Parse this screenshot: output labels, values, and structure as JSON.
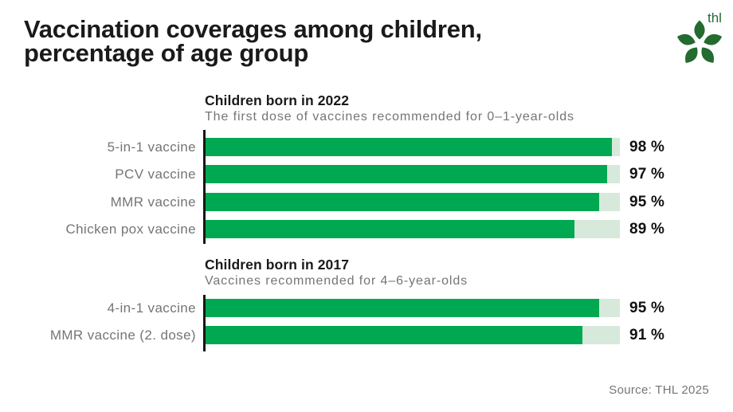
{
  "page": {
    "title_line1": "Vaccination coverages among children,",
    "title_line2": "percentage of age group",
    "source": "Source: THL 2025"
  },
  "logo": {
    "text": "thl"
  },
  "colors": {
    "bar_fill": "#00a851",
    "bar_track": "#d6e9da",
    "axis": "#161616",
    "logo_green": "#236b2f",
    "label_gray": "#757575",
    "heading_black": "#1a1a1a"
  },
  "chart_data": [
    {
      "type": "bar",
      "orientation": "horizontal",
      "title": "Children born in 2022",
      "subtitle": "The first dose of vaccines recommended for 0–1-year-olds",
      "categories": [
        "5-in-1 vaccine",
        "PCV vaccine",
        "MMR vaccine",
        "Chicken pox vaccine"
      ],
      "values": [
        98,
        97,
        95,
        89
      ],
      "value_labels": [
        "98 %",
        "97 %",
        "95 %",
        "89 %"
      ],
      "unit": "%",
      "xlim": [
        0,
        100
      ],
      "grid": false,
      "legend": false
    },
    {
      "type": "bar",
      "orientation": "horizontal",
      "title": "Children born in 2017",
      "subtitle": "Vaccines recommended for 4–6-year-olds",
      "categories": [
        "4-in-1 vaccine",
        "MMR vaccine (2. dose)"
      ],
      "values": [
        95,
        91
      ],
      "value_labels": [
        "95 %",
        "91 %"
      ],
      "unit": "%",
      "xlim": [
        0,
        100
      ],
      "grid": false,
      "legend": false
    }
  ]
}
